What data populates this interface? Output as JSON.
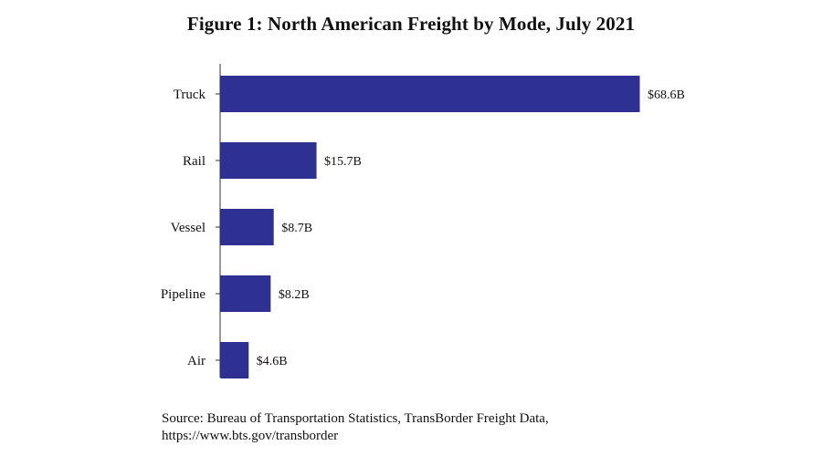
{
  "chart_data": {
    "type": "bar",
    "orientation": "horizontal",
    "title": "Figure 1: North American Freight by Mode, July 2021",
    "categories": [
      "Truck",
      "Rail",
      "Vessel",
      "Pipeline",
      "Air"
    ],
    "values": [
      68.6,
      15.7,
      8.7,
      8.2,
      4.6
    ],
    "value_labels": [
      "$68.6B",
      "$15.7B",
      "$8.7B",
      "$8.2B",
      "$4.6B"
    ],
    "xlabel": "",
    "ylabel": "",
    "xlim": [
      0,
      68.6
    ],
    "grid": false,
    "legend": "none",
    "bar_color": "#2e3192",
    "source_lines": [
      "Source: Bureau of Transportation Statistics, TransBorder Freight Data,",
      "https://www.bts.gov/transborder"
    ]
  }
}
